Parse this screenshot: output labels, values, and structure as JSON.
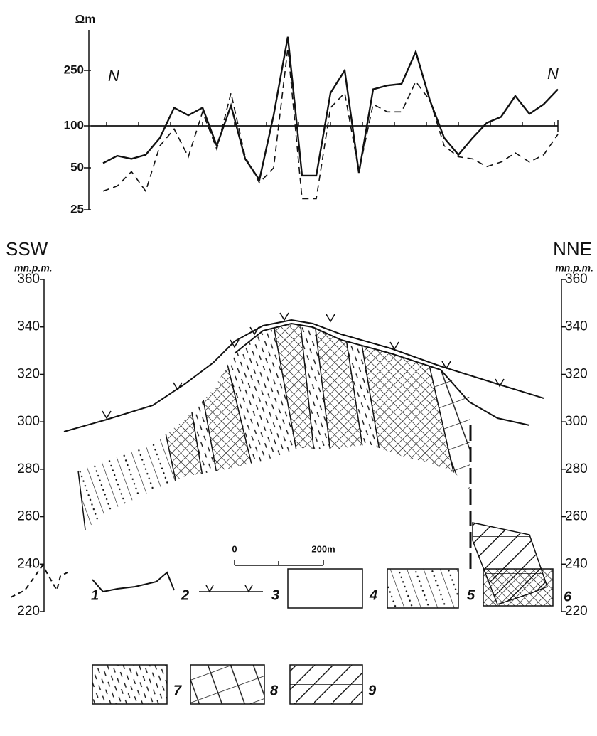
{
  "chart_data": {
    "type": "line",
    "y_label": "Ωm",
    "annotations": [
      "N",
      "N"
    ],
    "categories": [
      null,
      null,
      null,
      null,
      null,
      null,
      null,
      null,
      null,
      null,
      null,
      null,
      null,
      null,
      null,
      null,
      null,
      null,
      null,
      null,
      null,
      null,
      null,
      null,
      null,
      null,
      null,
      null,
      null,
      null,
      null,
      null,
      null
    ],
    "series": [
      {
        "color": "#111111",
        "dash": false,
        "values": [
          54,
          61,
          58,
          62,
          82,
          135,
          119,
          135,
          72,
          140,
          58,
          41,
          119,
          436,
          44,
          44,
          172,
          250,
          46,
          183,
          195,
          200,
          340,
          152,
          82,
          62,
          82,
          105,
          116,
          164,
          122,
          143,
          183
        ]
      },
      {
        "color": "#111111",
        "dash": true,
        "values": [
          34,
          37,
          47,
          34,
          72,
          95,
          60,
          126,
          68,
          172,
          60,
          39,
          50,
          362,
          30,
          30,
          135,
          172,
          47,
          143,
          126,
          126,
          208,
          152,
          72,
          60,
          58,
          51,
          55,
          64,
          55,
          62,
          87
        ]
      }
    ],
    "log_y": true,
    "ylim": [
      25,
      500
    ],
    "yticks": [
      25,
      50,
      100,
      250
    ],
    "grid": false
  },
  "cross_section": {
    "left_label": "SSW",
    "right_label": "NNE",
    "left_unit": "mn.p.m.",
    "right_unit": "mn.p.m.",
    "ylim": [
      220,
      360
    ],
    "yticks": [
      360,
      340,
      320,
      300,
      280,
      260,
      240,
      220
    ],
    "scale_labels": [
      "0",
      "200m"
    ]
  },
  "legend": {
    "items": [
      "1",
      "2",
      "3",
      "4",
      "5",
      "6",
      "7",
      "8",
      "9"
    ]
  }
}
